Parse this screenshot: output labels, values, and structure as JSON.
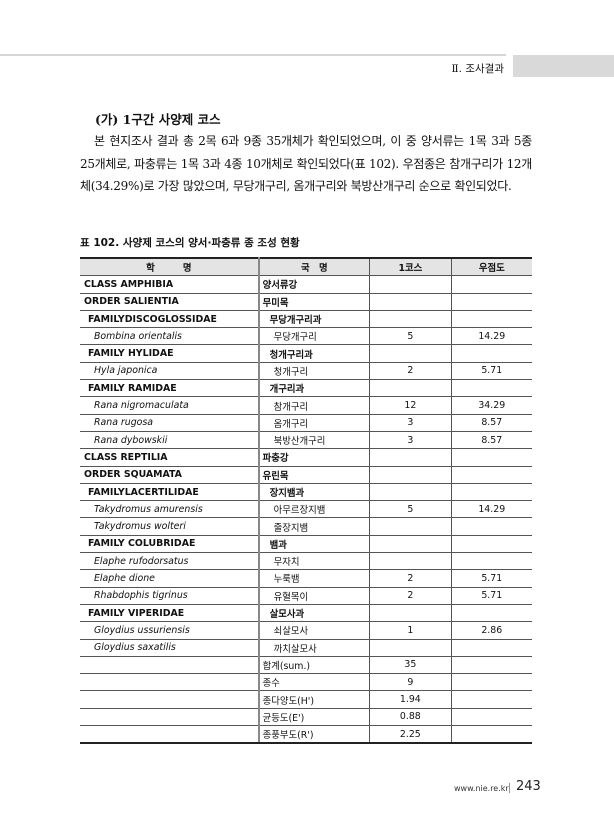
{
  "header": {
    "section": "Ⅱ. 조사결과"
  },
  "heading": "(가) 1구간 사양제 코스",
  "paragraph": "본 현지조사 결과 총 2목 6과 9종 35개체가 확인되었으며, 이 중 양서류는 1목 3과 5종 25개체로, 파충류는 1목 3과 4종 10개체로 확인되었다(표 102). 우점종은 참개구리가 12개체(34.29%)로 가장 많았으며, 무당개구리, 옴개구리와 북방산개구리 순으로 확인되었다.",
  "table": {
    "caption": "표 102. 사양제 코스의 양서·파충류 종 조성 현황",
    "headers": [
      "학　　　명",
      "국　명",
      "1코스",
      "우점도"
    ],
    "rows": [
      {
        "level": "class",
        "sci": "CLASS AMPHIBIA",
        "kor": "양서류강",
        "count": "",
        "dom": ""
      },
      {
        "level": "order",
        "sci": "ORDER SALIENTIA",
        "kor": "무미목",
        "count": "",
        "dom": ""
      },
      {
        "level": "family",
        "sci": "FAMILYDISCOGLOSSIDAE",
        "kor": "무당개구리과",
        "count": "",
        "dom": ""
      },
      {
        "level": "species",
        "sci": "Bombina orientalis",
        "kor": "무당개구리",
        "count": "5",
        "dom": "14.29"
      },
      {
        "level": "family",
        "sci": "FAMILY HYLIDAE",
        "kor": "청개구리과",
        "count": "",
        "dom": ""
      },
      {
        "level": "species",
        "sci": "Hyla japonica",
        "kor": "청개구리",
        "count": "2",
        "dom": "5.71"
      },
      {
        "level": "family",
        "sci": "FAMILY RAMIDAE",
        "kor": "개구리과",
        "count": "",
        "dom": ""
      },
      {
        "level": "species",
        "sci": "Rana nigromaculata",
        "kor": "참개구리",
        "count": "12",
        "dom": "34.29"
      },
      {
        "level": "species",
        "sci": "Rana rugosa",
        "kor": "옴개구리",
        "count": "3",
        "dom": "8.57"
      },
      {
        "level": "species",
        "sci": "Rana dybowskii",
        "kor": "북방산개구리",
        "count": "3",
        "dom": "8.57"
      },
      {
        "level": "class",
        "sci": "CLASS REPTILIA",
        "kor": "파충강",
        "count": "",
        "dom": ""
      },
      {
        "level": "order",
        "sci": "ORDER SQUAMATA",
        "kor": "유린목",
        "count": "",
        "dom": ""
      },
      {
        "level": "family",
        "sci": "FAMILYLACERTILIDAE",
        "kor": "장지뱀과",
        "count": "",
        "dom": ""
      },
      {
        "level": "species",
        "sci": "Takydromus amurensis",
        "kor": "아무르장지뱀",
        "count": "5",
        "dom": "14.29"
      },
      {
        "level": "species",
        "sci": "Takydromus wolteri",
        "kor": "줄장지뱀",
        "count": "",
        "dom": ""
      },
      {
        "level": "family",
        "sci": "FAMILY COLUBRIDAE",
        "kor": "뱀과",
        "count": "",
        "dom": ""
      },
      {
        "level": "species",
        "sci": "Elaphe rufodorsatus",
        "kor": "무자치",
        "count": "",
        "dom": ""
      },
      {
        "level": "species",
        "sci": "Elaphe dione",
        "kor": "누룩뱀",
        "count": "2",
        "dom": "5.71"
      },
      {
        "level": "species",
        "sci": "Rhabdophis tigrinus",
        "kor": "유혈목이",
        "count": "2",
        "dom": "5.71"
      },
      {
        "level": "family",
        "sci": "FAMILY VIPERIDAE",
        "kor": "살모사과",
        "count": "",
        "dom": ""
      },
      {
        "level": "species",
        "sci": "Gloydius ussuriensis",
        "kor": "쇠살모사",
        "count": "1",
        "dom": "2.86"
      },
      {
        "level": "species",
        "sci": "Gloydius saxatilis",
        "kor": "까치살모사",
        "count": "",
        "dom": ""
      },
      {
        "level": "summary",
        "sci": "",
        "kor": "합계(sum.)",
        "count": "35",
        "dom": ""
      },
      {
        "level": "summary",
        "sci": "",
        "kor": "종수",
        "count": "9",
        "dom": ""
      },
      {
        "level": "summary",
        "sci": "",
        "kor": "종다양도(H')",
        "count": "1.94",
        "dom": ""
      },
      {
        "level": "summary",
        "sci": "",
        "kor": "균등도(E')",
        "count": "0.88",
        "dom": ""
      },
      {
        "level": "summary",
        "sci": "",
        "kor": "종풍부도(R')",
        "count": "2.25",
        "dom": ""
      }
    ]
  },
  "footer": {
    "url": "www.nie.re.kr",
    "page": "243"
  }
}
